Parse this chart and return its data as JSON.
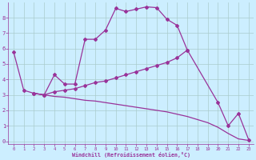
{
  "xlabel": "Windchill (Refroidissement éolien,°C)",
  "background_color": "#cceeff",
  "line_color": "#993399",
  "grid_color": "#aacccc",
  "xlim": [
    -0.5,
    23.5
  ],
  "ylim": [
    -0.2,
    9.0
  ],
  "xtick_labels": [
    "0",
    "1",
    "2",
    "3",
    "4",
    "5",
    "6",
    "7",
    "8",
    "9",
    "10",
    "11",
    "12",
    "13",
    "14",
    "15",
    "16",
    "17",
    "18",
    "19",
    "20",
    "21",
    "22",
    "23"
  ],
  "xtick_vals": [
    0,
    1,
    2,
    3,
    4,
    5,
    6,
    7,
    8,
    9,
    10,
    11,
    12,
    13,
    14,
    15,
    16,
    17,
    18,
    19,
    20,
    21,
    22,
    23
  ],
  "ytick_vals": [
    0,
    1,
    2,
    3,
    4,
    5,
    6,
    7,
    8
  ],
  "curve1_x": [
    0,
    1,
    2,
    3,
    4,
    5,
    6,
    7,
    8,
    9,
    10,
    11,
    12,
    13,
    14,
    15,
    16,
    17
  ],
  "curve1_y": [
    5.8,
    3.3,
    3.1,
    3.0,
    4.3,
    3.7,
    3.7,
    6.6,
    6.6,
    7.2,
    8.6,
    8.4,
    8.55,
    8.7,
    8.65,
    7.9,
    7.5,
    5.9
  ],
  "curve2_x": [
    2,
    3,
    4,
    5,
    6,
    7,
    8,
    9,
    10,
    11,
    12,
    13,
    14,
    15,
    16,
    17,
    20,
    21,
    22,
    23
  ],
  "curve2_y": [
    3.1,
    3.0,
    3.2,
    3.3,
    3.4,
    3.6,
    3.8,
    3.9,
    4.1,
    4.3,
    4.5,
    4.7,
    4.9,
    5.1,
    5.4,
    5.9,
    2.5,
    1.0,
    1.8,
    0.1
  ],
  "curve3_x": [
    2,
    3,
    4,
    5,
    6,
    7,
    8,
    9,
    10,
    11,
    12,
    13,
    14,
    15,
    16,
    17,
    18,
    19,
    20,
    21,
    22,
    23
  ],
  "curve3_y": [
    3.1,
    3.0,
    2.9,
    2.85,
    2.75,
    2.65,
    2.6,
    2.5,
    2.4,
    2.3,
    2.2,
    2.1,
    2.0,
    1.9,
    1.75,
    1.6,
    1.4,
    1.2,
    0.9,
    0.5,
    0.15,
    0.05
  ]
}
